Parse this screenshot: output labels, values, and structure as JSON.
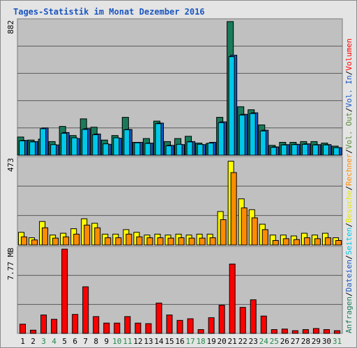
{
  "chart_data": {
    "type": "bar",
    "title": "Tages-Statistik im Monat Dezember 2016",
    "colors": {
      "title": "#1a55c0",
      "background": "#e4e4e4",
      "plot": "#c0c0c0",
      "gridline": "#5a5a5a",
      "weekend_day": "#1f8a4c",
      "weekday_day": "#000000",
      "separator": "#7a7a7a"
    },
    "categories": [
      "1",
      "2",
      "3",
      "4",
      "5",
      "6",
      "7",
      "8",
      "9",
      "10",
      "11",
      "12",
      "13",
      "14",
      "15",
      "16",
      "17",
      "18",
      "19",
      "20",
      "21",
      "22",
      "23",
      "24",
      "25",
      "26",
      "27",
      "28",
      "29",
      "30",
      "31"
    ],
    "weekend_days": [
      "3",
      "4",
      "10",
      "11",
      "17",
      "18",
      "24",
      "25",
      "31"
    ],
    "panels": [
      {
        "axis_label": "882",
        "ylim": [
          0,
          882
        ],
        "series": [
          {
            "name": "Anfragen",
            "color": "#1a7a5a",
            "values": [
              120,
              100,
              106,
              90,
              190,
              130,
              240,
              185,
              100,
              130,
              250,
              85,
              110,
              225,
              90,
              110,
              125,
              80,
              78,
              250,
              882,
              320,
              300,
              200,
              65,
              85,
              85,
              90,
              90,
              80,
              60
            ]
          },
          {
            "name": "Dateien",
            "color": "#1a55c0",
            "values": [
              98,
              90,
              180,
              68,
              150,
              110,
              175,
              140,
              72,
              112,
              170,
              85,
              80,
              212,
              65,
              70,
              90,
              70,
              85,
              220,
              660,
              270,
              280,
              165,
              55,
              70,
              72,
              75,
              70,
              70,
              50
            ]
          },
          {
            "name": "Seiten",
            "color": "#00c8e8",
            "values": [
              95,
              88,
              175,
              70,
              145,
              115,
              170,
              135,
              75,
              115,
              168,
              82,
              78,
              208,
              62,
              72,
              88,
              72,
              80,
              215,
              650,
              265,
              275,
              160,
              52,
              68,
              70,
              72,
              68,
              68,
              50
            ]
          }
        ]
      },
      {
        "axis_label": "473",
        "ylim": [
          0,
          473
        ],
        "series": [
          {
            "name": "Besuche",
            "color": "#ffff00",
            "values": [
              70,
              40,
              130,
              55,
              65,
              90,
              145,
              120,
              60,
              60,
              85,
              70,
              55,
              60,
              55,
              60,
              55,
              60,
              60,
              185,
              463,
              255,
              195,
              115,
              55,
              55,
              50,
              65,
              55,
              65,
              40
            ]
          },
          {
            "name": "Rechner",
            "color": "#ff8c00",
            "values": [
              45,
              28,
              95,
              38,
              45,
              60,
              110,
              95,
              40,
              40,
              60,
              45,
              40,
              40,
              38,
              40,
              38,
              38,
              40,
              140,
              400,
              205,
              150,
              85,
              25,
              35,
              30,
              40,
              35,
              40,
              25
            ]
          }
        ]
      },
      {
        "axis_label": "7.77 MB",
        "ylim": [
          0,
          7.77
        ],
        "series": [
          {
            "name": "Vol. Out",
            "color": "#5a8a3a",
            "values": []
          },
          {
            "name": "Vol. In",
            "color": "#1a55c0",
            "values": []
          },
          {
            "name": "Volumen",
            "color": "#ff0000",
            "values": [
              0.85,
              0.3,
              1.7,
              1.3,
              7.77,
              1.75,
              4.3,
              1.55,
              0.95,
              0.95,
              1.55,
              0.95,
              0.9,
              2.8,
              1.7,
              1.2,
              1.35,
              0.35,
              1.45,
              2.6,
              6.4,
              2.4,
              3.1,
              1.6,
              0.35,
              0.4,
              0.25,
              0.35,
              0.45,
              0.35,
              0.25
            ]
          }
        ]
      }
    ],
    "legend": [
      {
        "text": "Anfragen",
        "color": "#1a7a5a"
      },
      {
        "text": "/",
        "color": "#000000"
      },
      {
        "text": "Dateien",
        "color": "#1a55c0"
      },
      {
        "text": "/",
        "color": "#000000"
      },
      {
        "text": "Seiten",
        "color": "#00c8e8"
      },
      {
        "text": "/",
        "color": "#000000"
      },
      {
        "text": "Besuche",
        "color": "#e8e800"
      },
      {
        "text": "/",
        "color": "#000000"
      },
      {
        "text": "Rechner",
        "color": "#ff8c00"
      },
      {
        "text": "/",
        "color": "#000000"
      },
      {
        "text": "Vol. Out",
        "color": "#5a8a3a"
      },
      {
        "text": "/",
        "color": "#000000"
      },
      {
        "text": "Vol. In",
        "color": "#1a55c0"
      },
      {
        "text": "/",
        "color": "#000000"
      },
      {
        "text": "Volumen",
        "color": "#ff0000"
      }
    ]
  }
}
